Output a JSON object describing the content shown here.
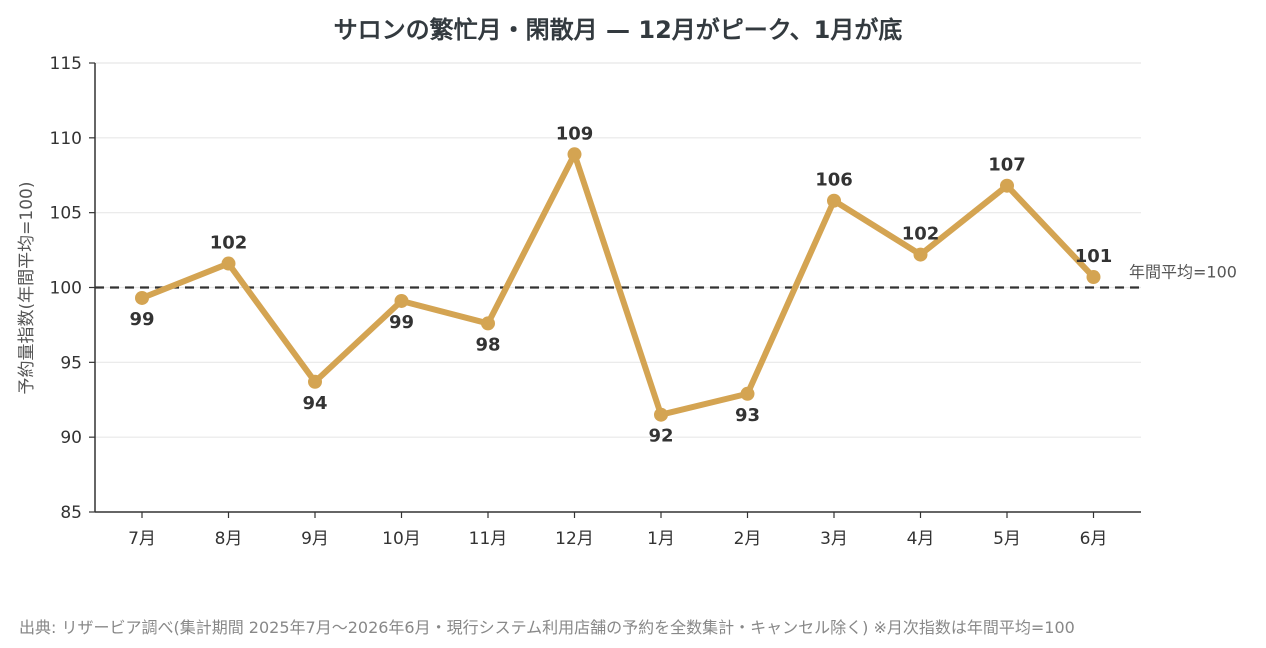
{
  "title": "サロンの繁忙月・閑散月 — 12月がピーク、1月が底",
  "source": "出典: リザービア調べ(集計期間 2025年7月〜2026年6月・現行システム利用店舗の予約を全数集計・キャンセル除く) ※月次指数は年間平均=100",
  "chart_data": {
    "type": "line",
    "categories": [
      "7月",
      "8月",
      "9月",
      "10月",
      "11月",
      "12月",
      "1月",
      "2月",
      "3月",
      "4月",
      "5月",
      "6月"
    ],
    "series": [
      {
        "values": [
          99.3,
          101.6,
          93.7,
          99.1,
          97.6,
          108.9,
          91.5,
          92.9,
          105.8,
          102.2,
          106.8,
          100.7
        ],
        "labels": [
          "99",
          "102",
          "94",
          "99",
          "98",
          "109",
          "92",
          "93",
          "106",
          "102",
          "107",
          "101"
        ],
        "label_pos": [
          "below",
          "above",
          "below",
          "below",
          "below",
          "above",
          "below",
          "below",
          "above",
          "above",
          "above",
          "above"
        ],
        "color": "#d4a452"
      }
    ],
    "ylabel": "予約量指数(年間平均=100)",
    "ylim": [
      85,
      115
    ],
    "yticks": [
      85,
      90,
      95,
      100,
      105,
      110,
      115
    ],
    "reference_line": {
      "value": 100,
      "label": "年間平均=100",
      "color": "#333333"
    },
    "grid": "horizontal",
    "grid_color": "#e8e8e8"
  }
}
